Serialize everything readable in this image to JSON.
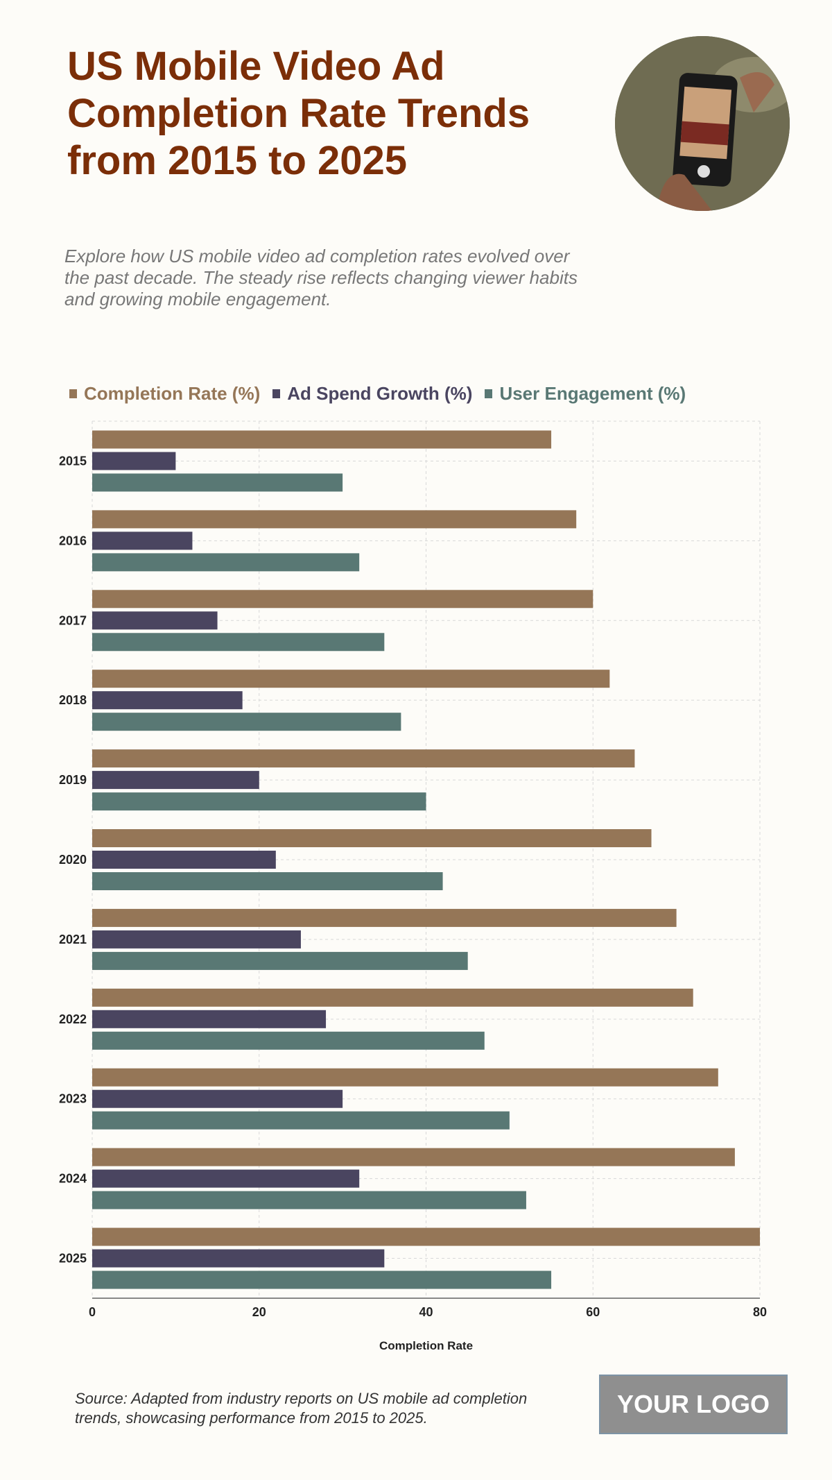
{
  "header": {
    "title": "US Mobile Video Ad Completion Rate Trends from 2015 to 2025",
    "subtitle": "Explore how US mobile video ad completion rates evolved over the past decade. The steady rise reflects changing viewer habits and growing mobile engagement."
  },
  "footer": {
    "source": "Source: Adapted from industry reports on US mobile ad completion trends, showcasing performance from 2015 to 2025.",
    "logo": "YOUR LOGO"
  },
  "chart_data": {
    "type": "bar",
    "orientation": "horizontal",
    "categories": [
      "2015",
      "2016",
      "2017",
      "2018",
      "2019",
      "2020",
      "2021",
      "2022",
      "2023",
      "2024",
      "2025"
    ],
    "series": [
      {
        "name": "Completion Rate (%)",
        "color": "#957657",
        "values": [
          55,
          58,
          60,
          62,
          65,
          67,
          70,
          72,
          75,
          77,
          80
        ]
      },
      {
        "name": "Ad Spend Growth (%)",
        "color": "#4a4560",
        "values": [
          10,
          12,
          15,
          18,
          20,
          22,
          25,
          28,
          30,
          32,
          35
        ]
      },
      {
        "name": "User Engagement (%)",
        "color": "#597874",
        "values": [
          30,
          32,
          35,
          37,
          40,
          42,
          45,
          47,
          50,
          52,
          55
        ]
      }
    ],
    "xlabel": "Completion Rate",
    "ylabel": "",
    "xlim": [
      0,
      80
    ],
    "xticks": [
      0,
      20,
      40,
      60,
      80
    ],
    "grid": true,
    "legend": "top"
  }
}
